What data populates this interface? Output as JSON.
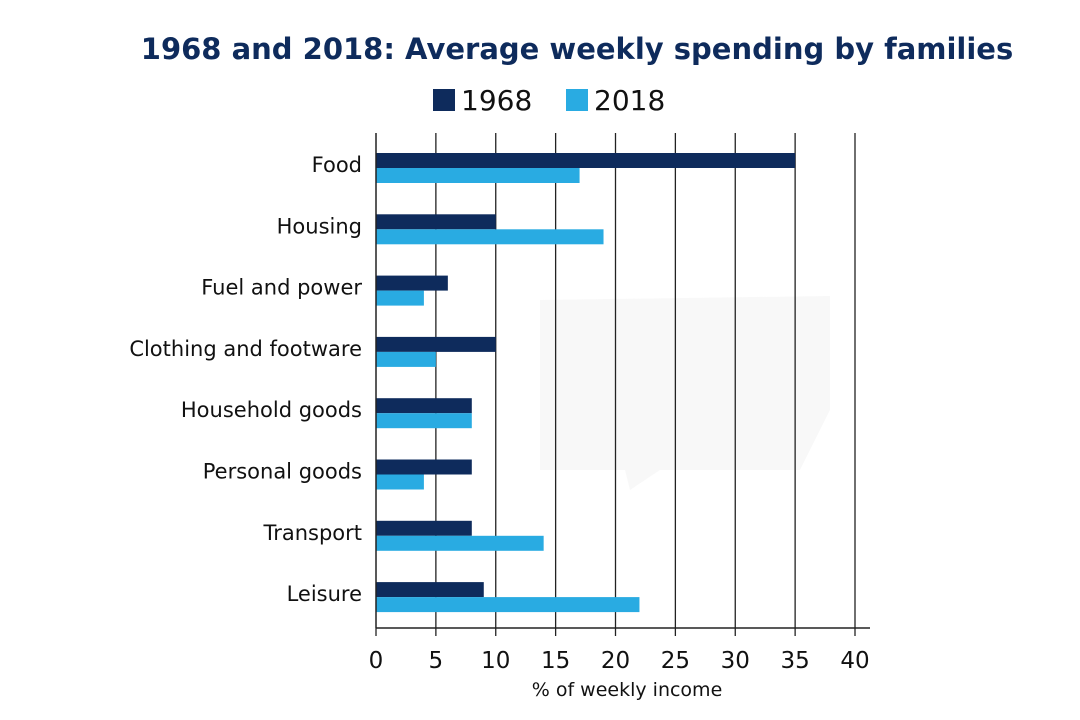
{
  "chart_data": {
    "type": "bar",
    "orientation": "horizontal",
    "title": "1968 and 2018: Average weekly spending by families",
    "xlabel": "% of weekly income",
    "ylabel": "",
    "xlim": [
      0,
      40
    ],
    "xticks": [
      "0",
      "5",
      "10",
      "15",
      "20",
      "25",
      "30",
      "35",
      "40"
    ],
    "grid": true,
    "legend_position": "top-center",
    "categories": [
      "Food",
      "Housing",
      "Fuel and power",
      "Clothing and footware",
      "Household goods",
      "Personal goods",
      "Transport",
      "Leisure"
    ],
    "series": [
      {
        "name": "1968",
        "color": "#0e2b5c",
        "values": [
          35,
          10,
          6,
          10,
          8,
          8,
          8,
          9
        ]
      },
      {
        "name": "2018",
        "color": "#29abe2",
        "values": [
          17,
          19,
          4,
          5,
          8,
          4,
          14,
          22
        ]
      }
    ]
  }
}
